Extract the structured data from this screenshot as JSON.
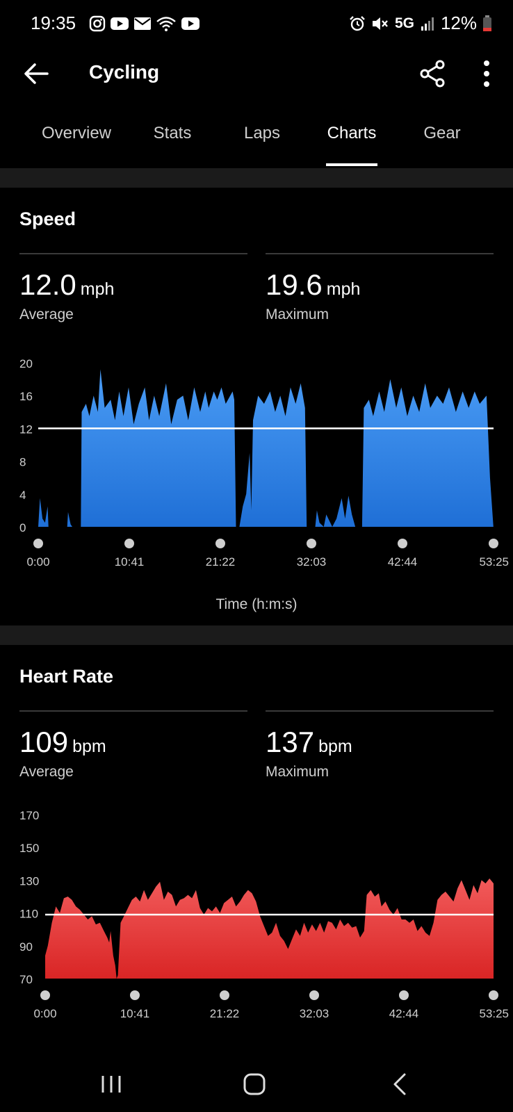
{
  "status_bar": {
    "time": "19:35",
    "network": "5G",
    "battery": "12%"
  },
  "app_bar": {
    "title": "Cycling"
  },
  "tabs": [
    {
      "label": "Overview",
      "active": false
    },
    {
      "label": "Stats",
      "active": false
    },
    {
      "label": "Laps",
      "active": false
    },
    {
      "label": "Charts",
      "active": true
    },
    {
      "label": "Gear",
      "active": false
    }
  ],
  "speed": {
    "title": "Speed",
    "average": {
      "value": "12.0",
      "unit": "mph",
      "label": "Average"
    },
    "maximum": {
      "value": "19.6",
      "unit": "mph",
      "label": "Maximum"
    },
    "x_axis_title": "Time (h:m:s)"
  },
  "heart_rate": {
    "title": "Heart Rate",
    "average": {
      "value": "109",
      "unit": "bpm",
      "label": "Average"
    },
    "maximum": {
      "value": "137",
      "unit": "bpm",
      "label": "Maximum"
    }
  },
  "chart_data": [
    {
      "type": "area",
      "color": "#3b8ff0",
      "x_ticks": [
        "0:00",
        "10:41",
        "21:22",
        "32:03",
        "42:44",
        "53:25"
      ],
      "y_ticks": [
        0,
        4,
        8,
        12,
        16,
        20
      ],
      "ylim": [
        0,
        20
      ],
      "xlim_minutes": [
        0,
        53.42
      ],
      "reference_line": 12.0,
      "series": [
        {
          "points": [
            [
              0,
              0
            ],
            [
              0.2,
              3.5
            ],
            [
              0.5,
              1
            ],
            [
              0.8,
              0.5
            ],
            [
              1.1,
              2.5
            ],
            [
              1.2,
              0
            ],
            [
              3.4,
              0
            ],
            [
              3.5,
              1.8
            ],
            [
              3.8,
              0.3
            ],
            [
              4.0,
              0
            ],
            [
              5.0,
              0
            ],
            [
              5.1,
              14
            ],
            [
              5.6,
              15
            ],
            [
              6,
              13.5
            ],
            [
              6.5,
              16
            ],
            [
              7,
              14
            ],
            [
              7.3,
              19.2
            ],
            [
              7.8,
              14.5
            ],
            [
              8.5,
              15.5
            ],
            [
              9,
              13
            ],
            [
              9.5,
              16.5
            ],
            [
              10,
              13.5
            ],
            [
              10.6,
              17
            ],
            [
              11.2,
              12.5
            ],
            [
              11.8,
              15
            ],
            [
              12.5,
              17
            ],
            [
              13,
              13
            ],
            [
              13.6,
              16
            ],
            [
              14.2,
              13.5
            ],
            [
              15,
              17.5
            ],
            [
              15.6,
              12.5
            ],
            [
              16.3,
              15.5
            ],
            [
              17,
              16
            ],
            [
              17.6,
              13
            ],
            [
              18.3,
              17
            ],
            [
              19,
              14
            ],
            [
              19.6,
              16.5
            ],
            [
              20,
              14.5
            ],
            [
              20.6,
              16.5
            ],
            [
              21,
              15.5
            ],
            [
              21.5,
              17
            ],
            [
              22,
              15
            ],
            [
              22.8,
              16.5
            ],
            [
              23,
              15.5
            ],
            [
              23.2,
              0
            ],
            [
              23.6,
              0
            ],
            [
              24,
              2.5
            ],
            [
              24.4,
              4
            ],
            [
              24.8,
              9
            ],
            [
              25,
              2
            ],
            [
              25.2,
              13
            ],
            [
              25.8,
              16
            ],
            [
              26.5,
              15
            ],
            [
              27.2,
              16.5
            ],
            [
              27.8,
              14
            ],
            [
              28.4,
              16
            ],
            [
              29,
              13.5
            ],
            [
              29.6,
              17
            ],
            [
              30.2,
              15
            ],
            [
              30.8,
              17.5
            ],
            [
              31.3,
              14.5
            ],
            [
              31.5,
              0
            ],
            [
              32.5,
              0
            ],
            [
              32.7,
              2
            ],
            [
              33,
              0.5
            ],
            [
              33.5,
              0
            ],
            [
              33.8,
              1.5
            ],
            [
              34.5,
              0
            ],
            [
              35,
              1
            ],
            [
              35.6,
              3.5
            ],
            [
              36,
              1
            ],
            [
              36.4,
              3.8
            ],
            [
              36.8,
              1.5
            ],
            [
              37.2,
              0
            ],
            [
              38,
              0
            ],
            [
              38.2,
              14.5
            ],
            [
              38.8,
              15.5
            ],
            [
              39.3,
              13.5
            ],
            [
              40,
              16.5
            ],
            [
              40.6,
              14
            ],
            [
              41.3,
              18
            ],
            [
              42,
              14.5
            ],
            [
              42.6,
              17
            ],
            [
              43.3,
              13.5
            ],
            [
              44,
              16
            ],
            [
              44.7,
              14
            ],
            [
              45.4,
              17.5
            ],
            [
              46,
              14.5
            ],
            [
              46.8,
              16
            ],
            [
              47.5,
              15
            ],
            [
              48.2,
              17
            ],
            [
              49,
              14
            ],
            [
              49.8,
              16.5
            ],
            [
              50.5,
              14.5
            ],
            [
              51.2,
              16.5
            ],
            [
              51.8,
              15
            ],
            [
              52.6,
              16
            ],
            [
              53,
              6
            ],
            [
              53.4,
              0
            ]
          ]
        }
      ]
    },
    {
      "type": "area",
      "color": "#e83838",
      "x_ticks": [
        "0:00",
        "10:41",
        "21:22",
        "32:03",
        "42:44",
        "53:25"
      ],
      "y_ticks": [
        70,
        90,
        110,
        130,
        150,
        170
      ],
      "ylim": [
        70,
        170
      ],
      "xlim_minutes": [
        0,
        53.42
      ],
      "reference_line": 109,
      "series": [
        {
          "points": [
            [
              0,
              84
            ],
            [
              0.4,
              90
            ],
            [
              1,
              104
            ],
            [
              1.6,
              114
            ],
            [
              2.2,
              110
            ],
            [
              2.8,
              119
            ],
            [
              3.4,
              120
            ],
            [
              4,
              118
            ],
            [
              4.6,
              114
            ],
            [
              5.2,
              112
            ],
            [
              5.8,
              109
            ],
            [
              6.4,
              106
            ],
            [
              7,
              108
            ],
            [
              7.6,
              103
            ],
            [
              8.2,
              104
            ],
            [
              8.8,
              99
            ],
            [
              9.3,
              95
            ],
            [
              9.6,
              92
            ],
            [
              9.8,
              99
            ],
            [
              10.2,
              84
            ],
            [
              10.5,
              78
            ],
            [
              10.7,
              70
            ],
            [
              10.9,
              72
            ],
            [
              11.3,
              104
            ],
            [
              11.8,
              108
            ],
            [
              12.4,
              113
            ],
            [
              13,
              118
            ],
            [
              13.6,
              120
            ],
            [
              14.2,
              117
            ],
            [
              14.8,
              124
            ],
            [
              15.4,
              118
            ],
            [
              16,
              122
            ],
            [
              16.6,
              126
            ],
            [
              17.2,
              129
            ],
            [
              17.8,
              118
            ],
            [
              18.4,
              123
            ],
            [
              19,
              121
            ],
            [
              19.6,
              114
            ],
            [
              20.2,
              118
            ],
            [
              20.8,
              119
            ],
            [
              21.4,
              121
            ],
            [
              22,
              119
            ],
            [
              22.6,
              124
            ],
            [
              23.2,
              113
            ],
            [
              23.8,
              109
            ],
            [
              24.4,
              113
            ],
            [
              25,
              111
            ],
            [
              25.6,
              114
            ],
            [
              26.2,
              110
            ],
            [
              26.8,
              116
            ],
            [
              27.4,
              118
            ],
            [
              28,
              120
            ],
            [
              28.6,
              114
            ],
            [
              29.2,
              117
            ],
            [
              29.8,
              121
            ],
            [
              30.4,
              124
            ],
            [
              31,
              122
            ],
            [
              31.6,
              117
            ],
            [
              32.2,
              108
            ],
            [
              32.8,
              102
            ],
            [
              33.4,
              96
            ],
            [
              34,
              98
            ],
            [
              34.6,
              104
            ],
            [
              35.2,
              96
            ],
            [
              35.8,
              93
            ],
            [
              36.4,
              88
            ],
            [
              37,
              94
            ],
            [
              37.6,
              100
            ],
            [
              38.2,
              96
            ],
            [
              38.8,
              104
            ],
            [
              39.4,
              98
            ],
            [
              40,
              103
            ],
            [
              40.6,
              99
            ],
            [
              41.2,
              104
            ],
            [
              41.8,
              98
            ],
            [
              42.4,
              105
            ],
            [
              43,
              104
            ],
            [
              43.6,
              100
            ],
            [
              44.2,
              106
            ],
            [
              44.8,
              102
            ],
            [
              45.4,
              104
            ],
            [
              46,
              101
            ],
            [
              46.6,
              102
            ],
            [
              47.2,
              95
            ],
            [
              47.8,
              99
            ],
            [
              48.2,
              121
            ],
            [
              48.8,
              124
            ],
            [
              49.4,
              120
            ],
            [
              50,
              122
            ],
            [
              50.4,
              114
            ],
            [
              51,
              117
            ],
            [
              51.6,
              112
            ],
            [
              52.2,
              109
            ],
            [
              52.8,
              113
            ],
            [
              53.42,
              106
            ],
            [
              54,
              106
            ],
            [
              54.6,
              104
            ],
            [
              55.2,
              106
            ],
            [
              55.8,
              99
            ],
            [
              56.4,
              102
            ],
            [
              57,
              98
            ],
            [
              57.6,
              96
            ],
            [
              58.2,
              104
            ],
            [
              58.8,
              118
            ],
            [
              59.4,
              121
            ],
            [
              60,
              123
            ],
            [
              60.6,
              120
            ],
            [
              61.2,
              117
            ],
            [
              61.8,
              125
            ],
            [
              62.4,
              130
            ],
            [
              63,
              124
            ],
            [
              63.6,
              118
            ],
            [
              64.2,
              127
            ],
            [
              64.8,
              122
            ],
            [
              65.4,
              130
            ],
            [
              66,
              128
            ],
            [
              66.6,
              131
            ],
            [
              67.2,
              128
            ]
          ]
        }
      ]
    }
  ]
}
